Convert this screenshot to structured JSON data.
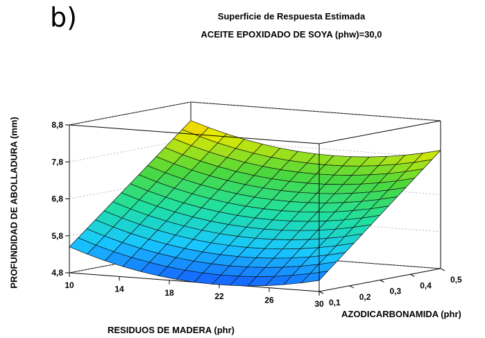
{
  "panel_label": "b)",
  "chart_data": {
    "type": "surface",
    "title": "Superficie de Respuesta Estimada",
    "subtitle": "ACEITE EPOXIDADO DE SOYA (phw)=30,0",
    "xlabel": "RESIDUOS DE MADERA (phr)",
    "ylabel": "PROFUNDIDAD DE ABOLLADURA (mm)",
    "zlabel": "AZODICARBONAMIDA (phr)",
    "x_ticks": [
      "10",
      "14",
      "18",
      "22",
      "26",
      "30"
    ],
    "x_tick_values": [
      10,
      14,
      18,
      22,
      26,
      30
    ],
    "z_ticks": [
      "0,1",
      "0,2",
      "0,3",
      "0,4",
      "0,5"
    ],
    "z_tick_values": [
      0.1,
      0.2,
      0.3,
      0.4,
      0.5
    ],
    "y_ticks": [
      "4,8",
      "5,8",
      "6,8",
      "7,8",
      "8,8"
    ],
    "y_tick_values": [
      4.8,
      5.8,
      6.8,
      7.8,
      8.8
    ],
    "xlim": [
      10,
      30
    ],
    "zlim": [
      0.1,
      0.5
    ],
    "ylim": [
      4.8,
      8.8
    ],
    "corner_values": [
      {
        "x": 10,
        "z": 0.1,
        "y": 5.5
      },
      {
        "x": 30,
        "z": 0.1,
        "y": 5.1
      },
      {
        "x": 10,
        "z": 0.5,
        "y": 8.3
      },
      {
        "x": 30,
        "z": 0.5,
        "y": 8.0
      }
    ],
    "min_value": {
      "x": 20,
      "z": 0.1,
      "y": 4.8
    },
    "grid_lines": 14,
    "colormap": [
      "#1560ff",
      "#18c8ff",
      "#20e0a0",
      "#4cd83c",
      "#e8e800",
      "#ff8c00"
    ]
  }
}
